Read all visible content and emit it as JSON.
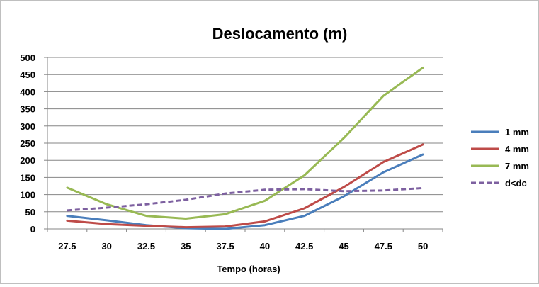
{
  "chart_data": {
    "type": "line",
    "title": "Deslocamento (m)",
    "xlabel": "Tempo (horas)",
    "ylabel": "",
    "categories": [
      "27.5",
      "30",
      "32.5",
      "35",
      "37.5",
      "40",
      "42.5",
      "45",
      "47.5",
      "50"
    ],
    "y_ticks": [
      "0",
      "50",
      "100",
      "150",
      "200",
      "250",
      "300",
      "350",
      "400",
      "450",
      "500"
    ],
    "ylim": [
      0,
      500
    ],
    "grid": "horizontal",
    "legend_position": "right",
    "series": [
      {
        "name": "1 mm",
        "color": "#4a7ebb",
        "dashed": false,
        "values": [
          38,
          25,
          11,
          2,
          0,
          11,
          38,
          95,
          165,
          217
        ]
      },
      {
        "name": "4 mm",
        "color": "#be4b48",
        "dashed": false,
        "values": [
          24,
          14,
          9,
          5,
          7,
          22,
          60,
          122,
          195,
          246
        ]
      },
      {
        "name": "7 mm",
        "color": "#98b954",
        "dashed": false,
        "values": [
          120,
          72,
          38,
          30,
          43,
          82,
          156,
          265,
          388,
          470
        ]
      },
      {
        "name": "d<dc",
        "color": "#7d60a0",
        "dashed": true,
        "values": [
          54,
          62,
          72,
          85,
          103,
          114,
          116,
          110,
          112,
          119
        ]
      }
    ]
  }
}
